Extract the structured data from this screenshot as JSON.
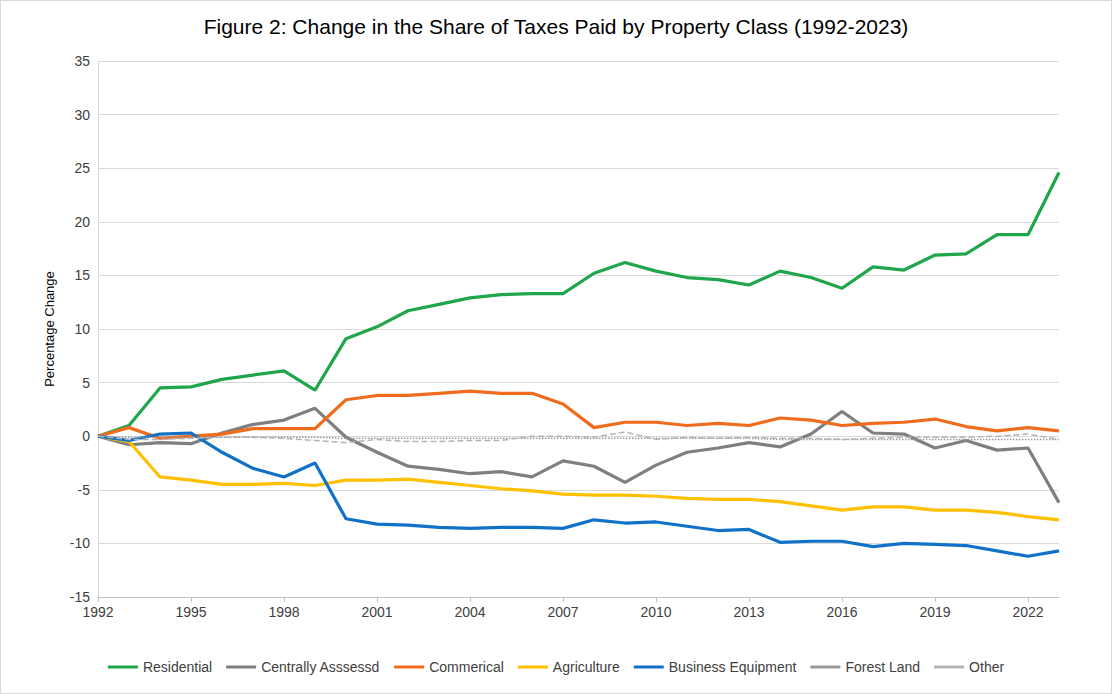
{
  "chart_data": {
    "type": "line",
    "title": "Figure 2: Change in the Share of Taxes Paid by Property Class (1992-2023)",
    "y_label": "Percentage Change",
    "x": [
      1992,
      1993,
      1994,
      1995,
      1996,
      1997,
      1998,
      1999,
      2000,
      2001,
      2002,
      2003,
      2004,
      2005,
      2006,
      2007,
      2008,
      2009,
      2010,
      2011,
      2012,
      2013,
      2014,
      2015,
      2016,
      2017,
      2018,
      2019,
      2020,
      2021,
      2022,
      2023
    ],
    "xlim": [
      1992,
      2023
    ],
    "xticks": [
      1992,
      1995,
      1998,
      2001,
      2004,
      2007,
      2010,
      2013,
      2016,
      2019,
      2022
    ],
    "ylim": [
      -15,
      35
    ],
    "yticks": [
      -15,
      -10,
      -5,
      0,
      5,
      10,
      15,
      20,
      25,
      30,
      35
    ],
    "grid": true,
    "legend": "bottom",
    "marker": "none",
    "series": [
      {
        "name": "Residential",
        "color": "#1fa64a",
        "line_style": "solid",
        "values": [
          0,
          1.0,
          4.5,
          4.6,
          5.3,
          5.7,
          6.1,
          4.3,
          9.1,
          10.2,
          11.7,
          12.3,
          12.9,
          13.2,
          13.3,
          13.3,
          15.2,
          16.2,
          15.4,
          14.8,
          14.6,
          14.1,
          15.4,
          14.8,
          13.8,
          15.8,
          15.5,
          16.9,
          17.0,
          18.8,
          18.8,
          24.6
        ]
      },
      {
        "name": "Centrally Asssessd",
        "color": "#7f7f7f",
        "line_style": "solid",
        "values": [
          0,
          -0.8,
          -0.6,
          -0.7,
          0.3,
          1.1,
          1.5,
          2.6,
          -0.1,
          -1.5,
          -2.8,
          -3.1,
          -3.5,
          -3.3,
          -3.8,
          -2.3,
          -2.8,
          -4.3,
          -2.7,
          -1.5,
          -1.1,
          -0.6,
          -1.0,
          0.2,
          2.3,
          0.3,
          0.2,
          -1.1,
          -0.4,
          -1.3,
          -1.1,
          -6.2
        ]
      },
      {
        "name": "Commerical",
        "color": "#f06b1c",
        "line_style": "solid",
        "values": [
          0,
          0.8,
          -0.2,
          0.0,
          0.2,
          0.7,
          0.7,
          0.7,
          3.4,
          3.8,
          3.8,
          4.0,
          4.2,
          4.0,
          4.0,
          3.0,
          0.8,
          1.3,
          1.3,
          1.0,
          1.2,
          1.0,
          1.7,
          1.5,
          1.0,
          1.2,
          1.3,
          1.6,
          0.9,
          0.5,
          0.8,
          0.5
        ]
      },
      {
        "name": "Agriculture",
        "color": "#ffc000",
        "line_style": "solid",
        "values": [
          0,
          -0.5,
          -3.8,
          -4.1,
          -4.5,
          -4.5,
          -4.4,
          -4.6,
          -4.1,
          -4.1,
          -4.0,
          -4.3,
          -4.6,
          -4.9,
          -5.1,
          -5.4,
          -5.5,
          -5.5,
          -5.6,
          -5.8,
          -5.9,
          -5.9,
          -6.1,
          -6.5,
          -6.9,
          -6.6,
          -6.6,
          -6.9,
          -6.9,
          -7.1,
          -7.5,
          -7.8
        ]
      },
      {
        "name": "Business Equipment",
        "color": "#0f72c8",
        "line_style": "solid",
        "values": [
          0,
          -0.4,
          0.2,
          0.3,
          -1.5,
          -3.0,
          -3.8,
          -2.5,
          -7.7,
          -8.2,
          -8.3,
          -8.5,
          -8.6,
          -8.5,
          -8.5,
          -8.6,
          -7.8,
          -8.1,
          -8.0,
          -8.4,
          -8.8,
          -8.7,
          -9.9,
          -9.8,
          -9.8,
          -10.3,
          -10.0,
          -10.1,
          -10.2,
          -10.7,
          -11.2,
          -10.7
        ]
      },
      {
        "name": "Forest Land",
        "color": "#9a9a9a",
        "line_style": "dotted",
        "values": [
          0,
          -0.1,
          -0.1,
          -0.1,
          -0.1,
          -0.1,
          -0.1,
          -0.1,
          -0.2,
          -0.2,
          -0.2,
          -0.2,
          -0.2,
          -0.2,
          -0.2,
          -0.2,
          -0.2,
          -0.2,
          -0.2,
          -0.2,
          -0.2,
          -0.2,
          -0.3,
          -0.3,
          -0.3,
          -0.3,
          -0.3,
          -0.3,
          -0.3,
          -0.3,
          -0.3,
          -0.3
        ]
      },
      {
        "name": "Other",
        "color": "#b4b4b4",
        "line_style": "dashed",
        "values": [
          0,
          -0.3,
          -0.3,
          -0.2,
          -0.1,
          -0.1,
          -0.2,
          -0.4,
          -0.6,
          -0.3,
          -0.5,
          -0.5,
          -0.4,
          -0.4,
          0.0,
          0.0,
          -0.1,
          0.4,
          -0.3,
          -0.1,
          -0.2,
          -0.1,
          -0.2,
          -0.2,
          -0.3,
          -0.2,
          -0.1,
          -0.1,
          -0.1,
          0.0,
          0.2,
          -0.3
        ]
      }
    ]
  }
}
